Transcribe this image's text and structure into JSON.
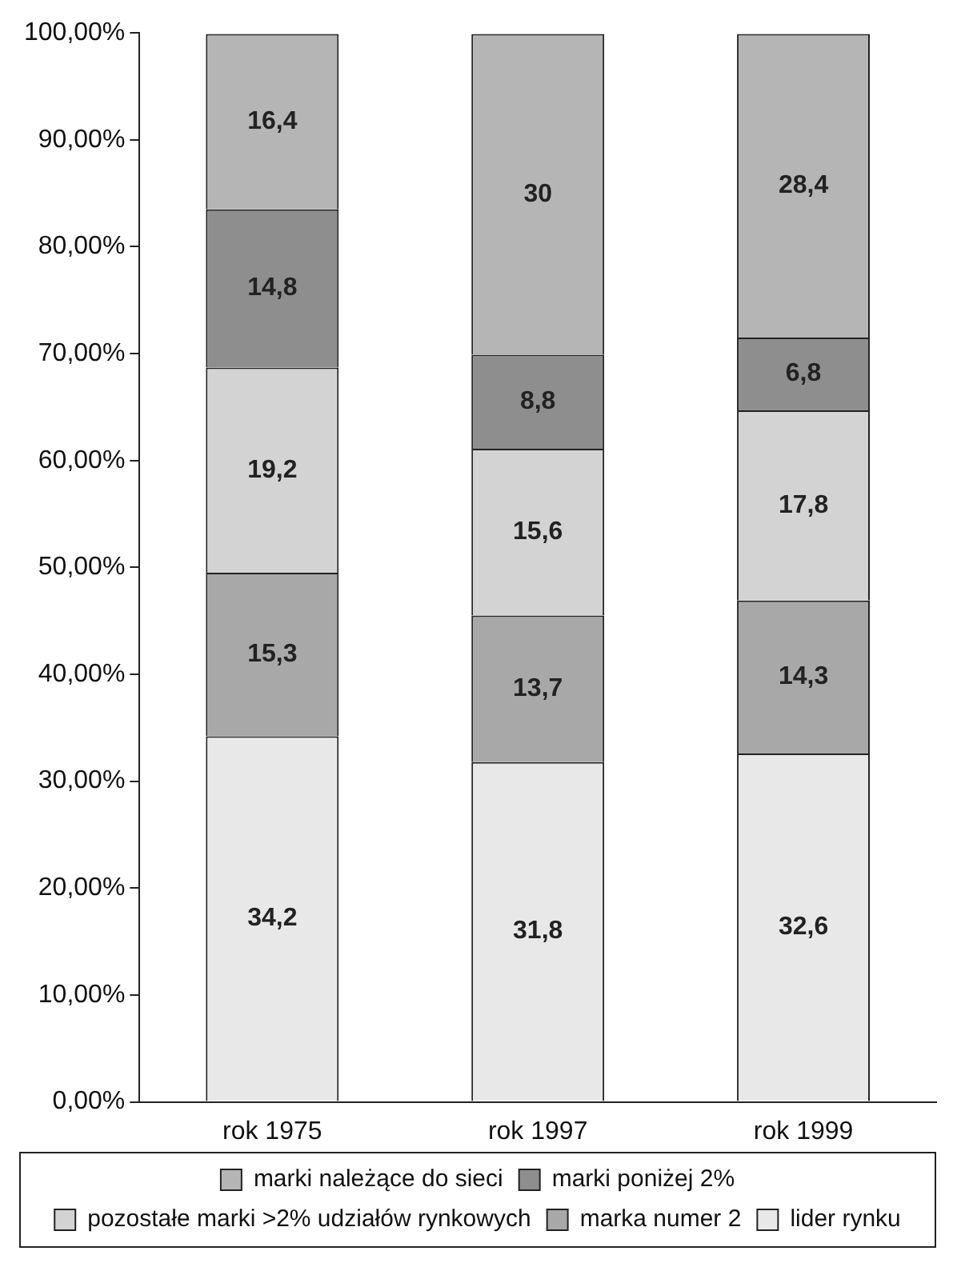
{
  "chart_data": {
    "type": "bar",
    "stacked": true,
    "categories": [
      "rok 1975",
      "rok 1997",
      "rok 1999"
    ],
    "series": [
      {
        "name": "lider rynku",
        "color": "#e8e8e8",
        "values": [
          34.2,
          31.8,
          32.6
        ],
        "value_labels": [
          "34,2",
          "31,8",
          "32,6"
        ]
      },
      {
        "name": "marka numer 2",
        "color": "#a8a8a8",
        "values": [
          15.3,
          13.7,
          14.3
        ],
        "value_labels": [
          "15,3",
          "13,7",
          "14,3"
        ]
      },
      {
        "name": "pozostałe marki >2% udziałów rynkowych",
        "color": "#d3d3d3",
        "values": [
          19.2,
          15.6,
          17.8
        ],
        "value_labels": [
          "19,2",
          "15,6",
          "17,8"
        ]
      },
      {
        "name": "marki poniżej 2%",
        "color": "#8e8e8e",
        "values": [
          14.8,
          8.8,
          6.8
        ],
        "value_labels": [
          "14,8",
          "8,8",
          "6,8"
        ]
      },
      {
        "name": "marki należące do sieci",
        "color": "#b5b5b5",
        "values": [
          16.4,
          30,
          28.4
        ],
        "value_labels": [
          "16,4",
          "30",
          "28,4"
        ]
      }
    ],
    "ylim": [
      0,
      100
    ],
    "yticks": [
      {
        "value": 0,
        "label": "0,00%"
      },
      {
        "value": 10,
        "label": "10,00%"
      },
      {
        "value": 20,
        "label": "20,00%"
      },
      {
        "value": 30,
        "label": "30,00%"
      },
      {
        "value": 40,
        "label": "40,00%"
      },
      {
        "value": 50,
        "label": "50,00%"
      },
      {
        "value": 60,
        "label": "60,00%"
      },
      {
        "value": 70,
        "label": "70,00%"
      },
      {
        "value": 80,
        "label": "80,00%"
      },
      {
        "value": 90,
        "label": "90,00%"
      },
      {
        "value": 100,
        "label": "100,00%"
      }
    ],
    "legend": "bottom",
    "grid": false
  }
}
